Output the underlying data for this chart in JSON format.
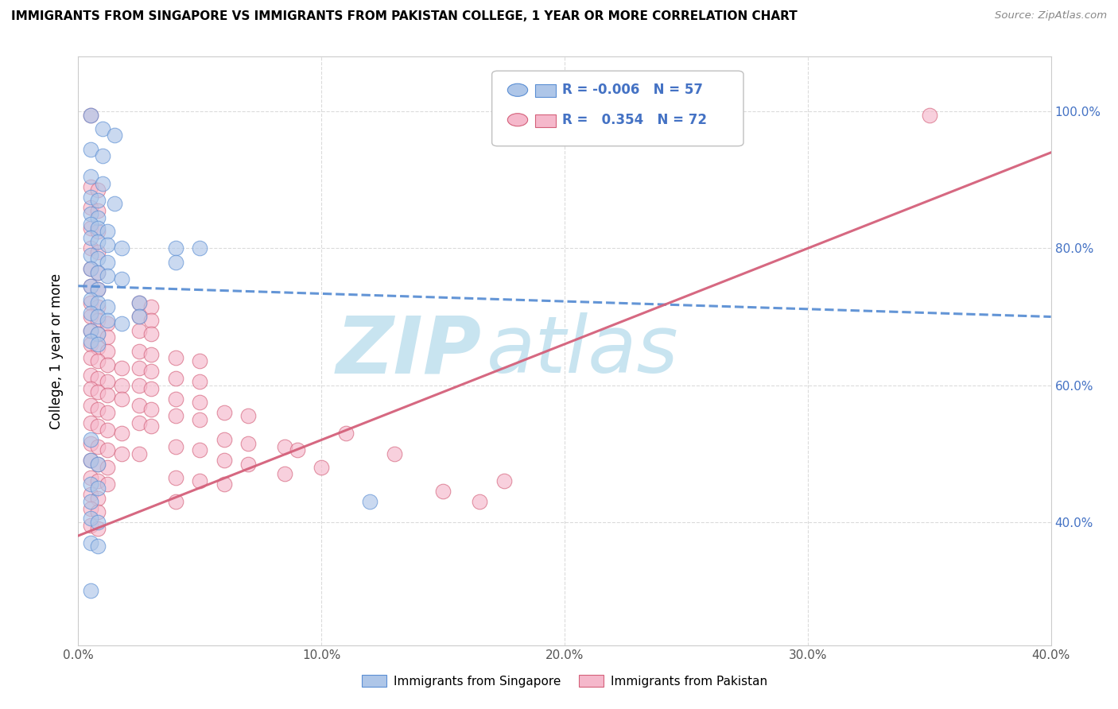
{
  "title": "IMMIGRANTS FROM SINGAPORE VS IMMIGRANTS FROM PAKISTAN COLLEGE, 1 YEAR OR MORE CORRELATION CHART",
  "source": "Source: ZipAtlas.com",
  "ylabel": "College, 1 year or more",
  "xlim": [
    0.0,
    0.4
  ],
  "ylim": [
    0.22,
    1.08
  ],
  "xtick_positions": [
    0.0,
    0.1,
    0.2,
    0.3,
    0.4
  ],
  "xticklabels": [
    "0.0%",
    "10.0%",
    "20.0%",
    "30.0%",
    "40.0%"
  ],
  "ytick_positions": [
    0.4,
    0.6,
    0.8,
    1.0
  ],
  "ytick_labels": [
    "40.0%",
    "60.0%",
    "80.0%",
    "100.0%"
  ],
  "legend_r_blue": "-0.006",
  "legend_n_blue": "57",
  "legend_r_pink": "0.354",
  "legend_n_pink": "72",
  "watermark_zip": "ZIP",
  "watermark_atlas": "atlas",
  "blue_scatter": [
    [
      0.005,
      0.995
    ],
    [
      0.01,
      0.975
    ],
    [
      0.015,
      0.965
    ],
    [
      0.005,
      0.945
    ],
    [
      0.01,
      0.935
    ],
    [
      0.005,
      0.905
    ],
    [
      0.01,
      0.895
    ],
    [
      0.005,
      0.875
    ],
    [
      0.008,
      0.87
    ],
    [
      0.015,
      0.865
    ],
    [
      0.005,
      0.85
    ],
    [
      0.008,
      0.845
    ],
    [
      0.005,
      0.835
    ],
    [
      0.008,
      0.83
    ],
    [
      0.012,
      0.825
    ],
    [
      0.005,
      0.815
    ],
    [
      0.008,
      0.81
    ],
    [
      0.012,
      0.805
    ],
    [
      0.018,
      0.8
    ],
    [
      0.005,
      0.79
    ],
    [
      0.008,
      0.785
    ],
    [
      0.012,
      0.78
    ],
    [
      0.005,
      0.77
    ],
    [
      0.008,
      0.765
    ],
    [
      0.012,
      0.76
    ],
    [
      0.018,
      0.755
    ],
    [
      0.005,
      0.745
    ],
    [
      0.008,
      0.74
    ],
    [
      0.005,
      0.725
    ],
    [
      0.008,
      0.72
    ],
    [
      0.012,
      0.715
    ],
    [
      0.005,
      0.705
    ],
    [
      0.008,
      0.7
    ],
    [
      0.012,
      0.695
    ],
    [
      0.018,
      0.69
    ],
    [
      0.005,
      0.68
    ],
    [
      0.008,
      0.675
    ],
    [
      0.005,
      0.665
    ],
    [
      0.008,
      0.66
    ],
    [
      0.04,
      0.8
    ],
    [
      0.05,
      0.8
    ],
    [
      0.04,
      0.78
    ],
    [
      0.025,
      0.72
    ],
    [
      0.025,
      0.7
    ],
    [
      0.005,
      0.52
    ],
    [
      0.005,
      0.49
    ],
    [
      0.008,
      0.485
    ],
    [
      0.005,
      0.455
    ],
    [
      0.008,
      0.45
    ],
    [
      0.005,
      0.43
    ],
    [
      0.005,
      0.405
    ],
    [
      0.008,
      0.4
    ],
    [
      0.005,
      0.37
    ],
    [
      0.008,
      0.365
    ],
    [
      0.005,
      0.3
    ],
    [
      0.12,
      0.43
    ]
  ],
  "pink_scatter": [
    [
      0.005,
      0.995
    ],
    [
      0.005,
      0.89
    ],
    [
      0.008,
      0.885
    ],
    [
      0.005,
      0.86
    ],
    [
      0.008,
      0.855
    ],
    [
      0.005,
      0.83
    ],
    [
      0.008,
      0.825
    ],
    [
      0.005,
      0.8
    ],
    [
      0.008,
      0.795
    ],
    [
      0.005,
      0.77
    ],
    [
      0.008,
      0.765
    ],
    [
      0.005,
      0.745
    ],
    [
      0.008,
      0.74
    ],
    [
      0.005,
      0.72
    ],
    [
      0.008,
      0.715
    ],
    [
      0.005,
      0.7
    ],
    [
      0.008,
      0.695
    ],
    [
      0.012,
      0.69
    ],
    [
      0.005,
      0.68
    ],
    [
      0.008,
      0.675
    ],
    [
      0.012,
      0.67
    ],
    [
      0.005,
      0.66
    ],
    [
      0.008,
      0.655
    ],
    [
      0.012,
      0.65
    ],
    [
      0.005,
      0.64
    ],
    [
      0.008,
      0.635
    ],
    [
      0.012,
      0.63
    ],
    [
      0.018,
      0.625
    ],
    [
      0.005,
      0.615
    ],
    [
      0.008,
      0.61
    ],
    [
      0.012,
      0.605
    ],
    [
      0.018,
      0.6
    ],
    [
      0.005,
      0.595
    ],
    [
      0.008,
      0.59
    ],
    [
      0.012,
      0.585
    ],
    [
      0.018,
      0.58
    ],
    [
      0.005,
      0.57
    ],
    [
      0.008,
      0.565
    ],
    [
      0.012,
      0.56
    ],
    [
      0.005,
      0.545
    ],
    [
      0.008,
      0.54
    ],
    [
      0.012,
      0.535
    ],
    [
      0.018,
      0.53
    ],
    [
      0.005,
      0.515
    ],
    [
      0.008,
      0.51
    ],
    [
      0.012,
      0.505
    ],
    [
      0.018,
      0.5
    ],
    [
      0.005,
      0.49
    ],
    [
      0.008,
      0.485
    ],
    [
      0.012,
      0.48
    ],
    [
      0.005,
      0.465
    ],
    [
      0.008,
      0.46
    ],
    [
      0.012,
      0.455
    ],
    [
      0.005,
      0.44
    ],
    [
      0.008,
      0.435
    ],
    [
      0.005,
      0.42
    ],
    [
      0.008,
      0.415
    ],
    [
      0.005,
      0.395
    ],
    [
      0.008,
      0.39
    ],
    [
      0.025,
      0.72
    ],
    [
      0.03,
      0.715
    ],
    [
      0.025,
      0.7
    ],
    [
      0.03,
      0.695
    ],
    [
      0.025,
      0.68
    ],
    [
      0.03,
      0.675
    ],
    [
      0.025,
      0.65
    ],
    [
      0.03,
      0.645
    ],
    [
      0.025,
      0.625
    ],
    [
      0.03,
      0.62
    ],
    [
      0.025,
      0.6
    ],
    [
      0.03,
      0.595
    ],
    [
      0.025,
      0.57
    ],
    [
      0.03,
      0.565
    ],
    [
      0.025,
      0.545
    ],
    [
      0.03,
      0.54
    ],
    [
      0.025,
      0.5
    ],
    [
      0.04,
      0.64
    ],
    [
      0.05,
      0.635
    ],
    [
      0.04,
      0.61
    ],
    [
      0.05,
      0.605
    ],
    [
      0.04,
      0.58
    ],
    [
      0.05,
      0.575
    ],
    [
      0.04,
      0.555
    ],
    [
      0.05,
      0.55
    ],
    [
      0.04,
      0.51
    ],
    [
      0.05,
      0.505
    ],
    [
      0.04,
      0.465
    ],
    [
      0.05,
      0.46
    ],
    [
      0.04,
      0.43
    ],
    [
      0.06,
      0.56
    ],
    [
      0.07,
      0.555
    ],
    [
      0.06,
      0.52
    ],
    [
      0.07,
      0.515
    ],
    [
      0.06,
      0.49
    ],
    [
      0.07,
      0.485
    ],
    [
      0.06,
      0.455
    ],
    [
      0.085,
      0.51
    ],
    [
      0.09,
      0.505
    ],
    [
      0.085,
      0.47
    ],
    [
      0.1,
      0.48
    ],
    [
      0.11,
      0.53
    ],
    [
      0.13,
      0.5
    ],
    [
      0.15,
      0.445
    ],
    [
      0.165,
      0.43
    ],
    [
      0.175,
      0.46
    ],
    [
      0.35,
      0.995
    ]
  ],
  "blue_line_x": [
    0.0,
    0.4
  ],
  "blue_line_y": [
    0.745,
    0.7
  ],
  "pink_line_x": [
    0.0,
    0.4
  ],
  "pink_line_y": [
    0.38,
    0.94
  ],
  "scatter_color_blue": "#aec6e8",
  "scatter_color_pink": "#f5b8cb",
  "line_color_blue": "#5b8fd4",
  "line_color_pink": "#d4607a",
  "legend_box_blue": "#aec6e8",
  "legend_box_pink": "#f5b8cb",
  "watermark_color_zip": "#c8e4f0",
  "watermark_color_atlas": "#c8e4f0",
  "background_color": "#ffffff",
  "grid_color": "#d8d8d8",
  "left_tick_color": "#555555",
  "right_tick_color": "#4472c4"
}
